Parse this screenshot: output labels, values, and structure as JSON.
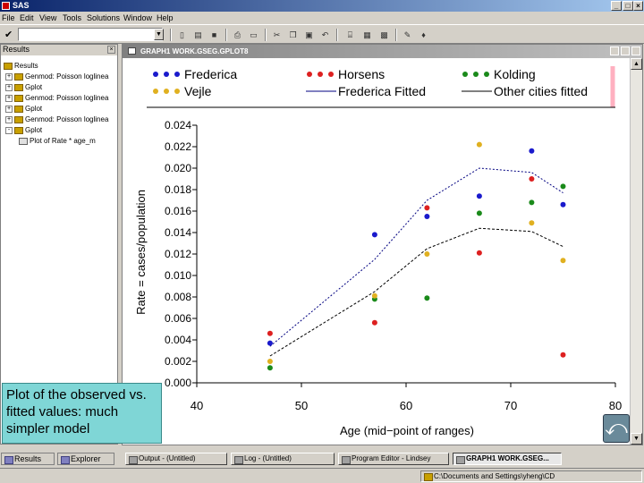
{
  "app": {
    "title": "SAS"
  },
  "menu": [
    "File",
    "Edit",
    "View",
    "Tools",
    "Solutions",
    "Window",
    "Help"
  ],
  "toolbar": {
    "command_value": "",
    "icons": [
      "new-icon",
      "open-icon",
      "save-icon",
      "print-icon",
      "print-preview-icon",
      "cut-icon",
      "copy-icon",
      "paste-icon",
      "undo-icon",
      "new-library-icon",
      "explorer-icon",
      "options-icon",
      "help-icon"
    ]
  },
  "results_pane": {
    "title": "Results",
    "items": [
      {
        "label": "Results",
        "level": 0,
        "expander": ""
      },
      {
        "label": "Genmod: Poisson loglinea",
        "level": 1,
        "expander": "+"
      },
      {
        "label": "Gplot",
        "level": 1,
        "expander": "+"
      },
      {
        "label": "Genmod: Poisson loglinea",
        "level": 1,
        "expander": "+"
      },
      {
        "label": "Gplot",
        "level": 1,
        "expander": "+"
      },
      {
        "label": "Genmod: Poisson loglinea",
        "level": 1,
        "expander": "+"
      },
      {
        "label": "Gplot",
        "level": 1,
        "expander": "-"
      },
      {
        "label": "Plot of Rate * age_m",
        "level": 2,
        "expander": ""
      }
    ]
  },
  "note": {
    "text": "Plot of the observed vs. fitted values: much simpler model"
  },
  "graph_window": {
    "title": "GRAPH1  WORK.GSEG.GPLOT8"
  },
  "colors": {
    "frederica": "#1a1acc",
    "horsens": "#dd2020",
    "kolding": "#1a8a1a",
    "vejle": "#e0b020",
    "fit_line": "#000080",
    "legend_border": "#ffb0c0",
    "note_bg": "#7fd6d6"
  },
  "chart_data": {
    "type": "scatter",
    "xlabel": "Age (mid−point of ranges)",
    "ylabel": "Rate  =  cases/population",
    "xlim": [
      40,
      80
    ],
    "ylim": [
      0,
      0.024
    ],
    "xticks": [
      "40",
      "50",
      "60",
      "70",
      "80"
    ],
    "yticks": [
      "0.000",
      "0.002",
      "0.004",
      "0.006",
      "0.008",
      "0.010",
      "0.012",
      "0.014",
      "0.016",
      "0.018",
      "0.020",
      "0.022",
      "0.024"
    ],
    "grid": false,
    "legend_position": "top",
    "series": [
      {
        "name": "Frederica",
        "kind": "points",
        "color": "#1a1acc",
        "x": [
          47,
          57,
          62,
          67,
          72,
          75
        ],
        "y": [
          0.0037,
          0.0138,
          0.0155,
          0.0174,
          0.0216,
          0.0166
        ]
      },
      {
        "name": "Horsens",
        "kind": "points",
        "color": "#dd2020",
        "x": [
          47,
          57,
          62,
          67,
          72,
          75
        ],
        "y": [
          0.0046,
          0.0056,
          0.0163,
          0.0121,
          0.019,
          0.0026
        ]
      },
      {
        "name": "Kolding",
        "kind": "points",
        "color": "#1a8a1a",
        "x": [
          47,
          57,
          62,
          67,
          72,
          75
        ],
        "y": [
          0.0014,
          0.0078,
          0.0079,
          0.0158,
          0.0168,
          0.0183
        ]
      },
      {
        "name": "Vejle",
        "kind": "points",
        "color": "#e0b020",
        "x": [
          47,
          57,
          62,
          67,
          72,
          75
        ],
        "y": [
          0.002,
          0.0081,
          0.012,
          0.0222,
          0.0149,
          0.0114
        ]
      },
      {
        "name": "Frederica Fitted",
        "kind": "line",
        "color": "#000080",
        "dash": "2,2",
        "x": [
          47,
          57,
          62,
          67,
          72,
          75
        ],
        "y": [
          0.0034,
          0.0115,
          0.017,
          0.02,
          0.0196,
          0.0177
        ]
      },
      {
        "name": "Other cities fitted",
        "kind": "line",
        "color": "#000000",
        "dash": "3,2",
        "x": [
          47,
          57,
          62,
          67,
          72,
          75
        ],
        "y": [
          0.0025,
          0.0085,
          0.0125,
          0.0144,
          0.0141,
          0.0127
        ]
      }
    ]
  },
  "bottom_tabs": [
    {
      "label": "Results"
    },
    {
      "label": "Explorer"
    }
  ],
  "taskbar": [
    {
      "label": "Output - (Untitled)",
      "active": false
    },
    {
      "label": "Log - (Untitled)",
      "active": false
    },
    {
      "label": "Program Editor - Lindsey",
      "active": false
    },
    {
      "label": "GRAPH1  WORK.GSEG...",
      "active": true
    }
  ],
  "status": {
    "path": "C:\\Documents and Settings\\yheng\\CD"
  }
}
